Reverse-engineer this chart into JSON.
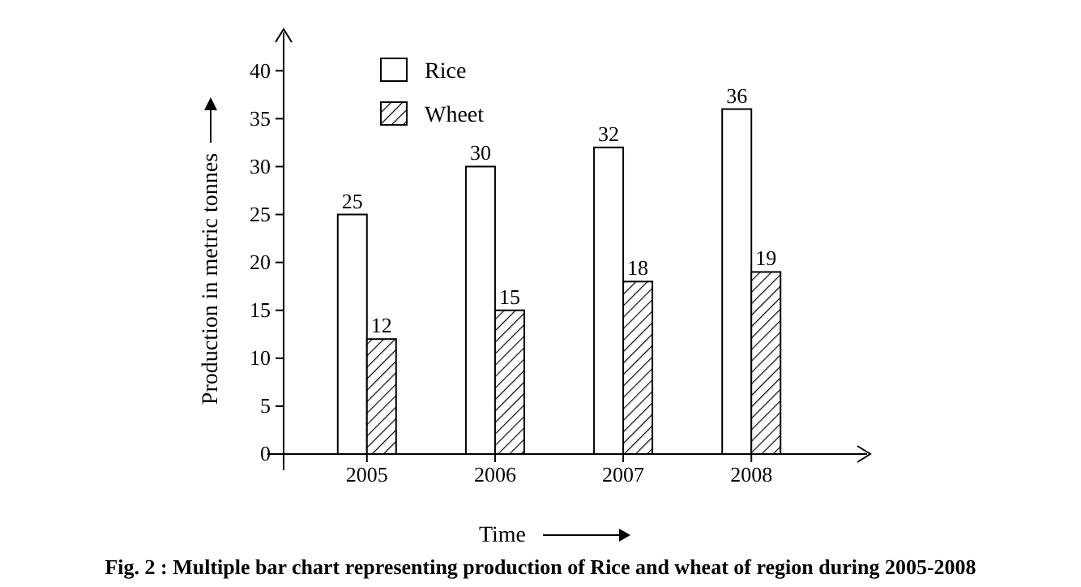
{
  "chart_data": {
    "type": "bar",
    "xlabel": "Time",
    "ylabel": "Production in metric tonnes",
    "categories": [
      "2005",
      "2006",
      "2007",
      "2008"
    ],
    "series": [
      {
        "name": "Rice",
        "color": "#ffffff",
        "values": [
          25,
          30,
          32,
          36
        ]
      },
      {
        "name": "Wheet",
        "color": "#000000",
        "values": [
          12,
          15,
          18,
          19
        ]
      }
    ],
    "ylim": [
      0,
      44
    ],
    "yticks": [
      0,
      5,
      10,
      15,
      20,
      25,
      30,
      35,
      40
    ],
    "data_labels": true,
    "legend": "top left",
    "grid": false,
    "annotations": [
      "Fig. 2 : Multiple bar chart representing production of Rice and wheat of region during 2005-2008"
    ]
  }
}
